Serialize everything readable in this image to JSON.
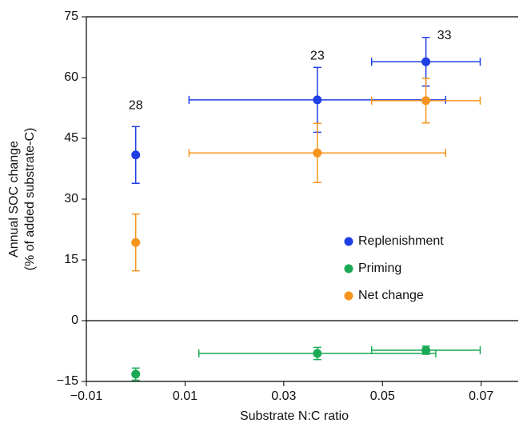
{
  "chart_data": {
    "type": "scatter",
    "xlabel": "Substrate N:C ratio",
    "ylabel": [
      "Annual SOC change",
      "(% of added substrate-C)"
    ],
    "xlim": [
      -0.01,
      0.0775
    ],
    "ylim": [
      -15,
      75
    ],
    "xticks": [
      {
        "value": -0.01,
        "label": "−0.01"
      },
      0.01,
      0.03,
      0.05,
      0.07
    ],
    "yticks": [
      {
        "value": -15,
        "label": "−15"
      },
      0,
      15,
      30,
      45,
      60,
      75
    ],
    "legend": "right",
    "series": [
      {
        "name": "Replenishment",
        "color": "#1f3fe6",
        "x": [
          0.0,
          0.0368,
          0.0588
        ],
        "values": [
          40.9,
          54.5,
          63.9
        ],
        "yerr": [
          7,
          8,
          6
        ],
        "xerr": [
          null,
          0.026,
          0.011
        ],
        "annotations": [
          "28",
          "23",
          "33"
        ]
      },
      {
        "name": "Priming",
        "color": "#1aaa55",
        "x": [
          0.0,
          0.0368,
          0.0588
        ],
        "values": [
          -13.2,
          -8.1,
          -7.3
        ],
        "yerr": [
          1.5,
          1.5,
          1
        ],
        "xerr": [
          null,
          0.024,
          0.011
        ]
      },
      {
        "name": "Net change",
        "color": "#f7941d",
        "x": [
          0.0,
          0.0368,
          0.0588
        ],
        "values": [
          19.3,
          41.4,
          54.3
        ],
        "yerr": [
          7,
          7.3,
          5.5
        ],
        "xerr": [
          null,
          0.026,
          0.011
        ]
      }
    ]
  }
}
